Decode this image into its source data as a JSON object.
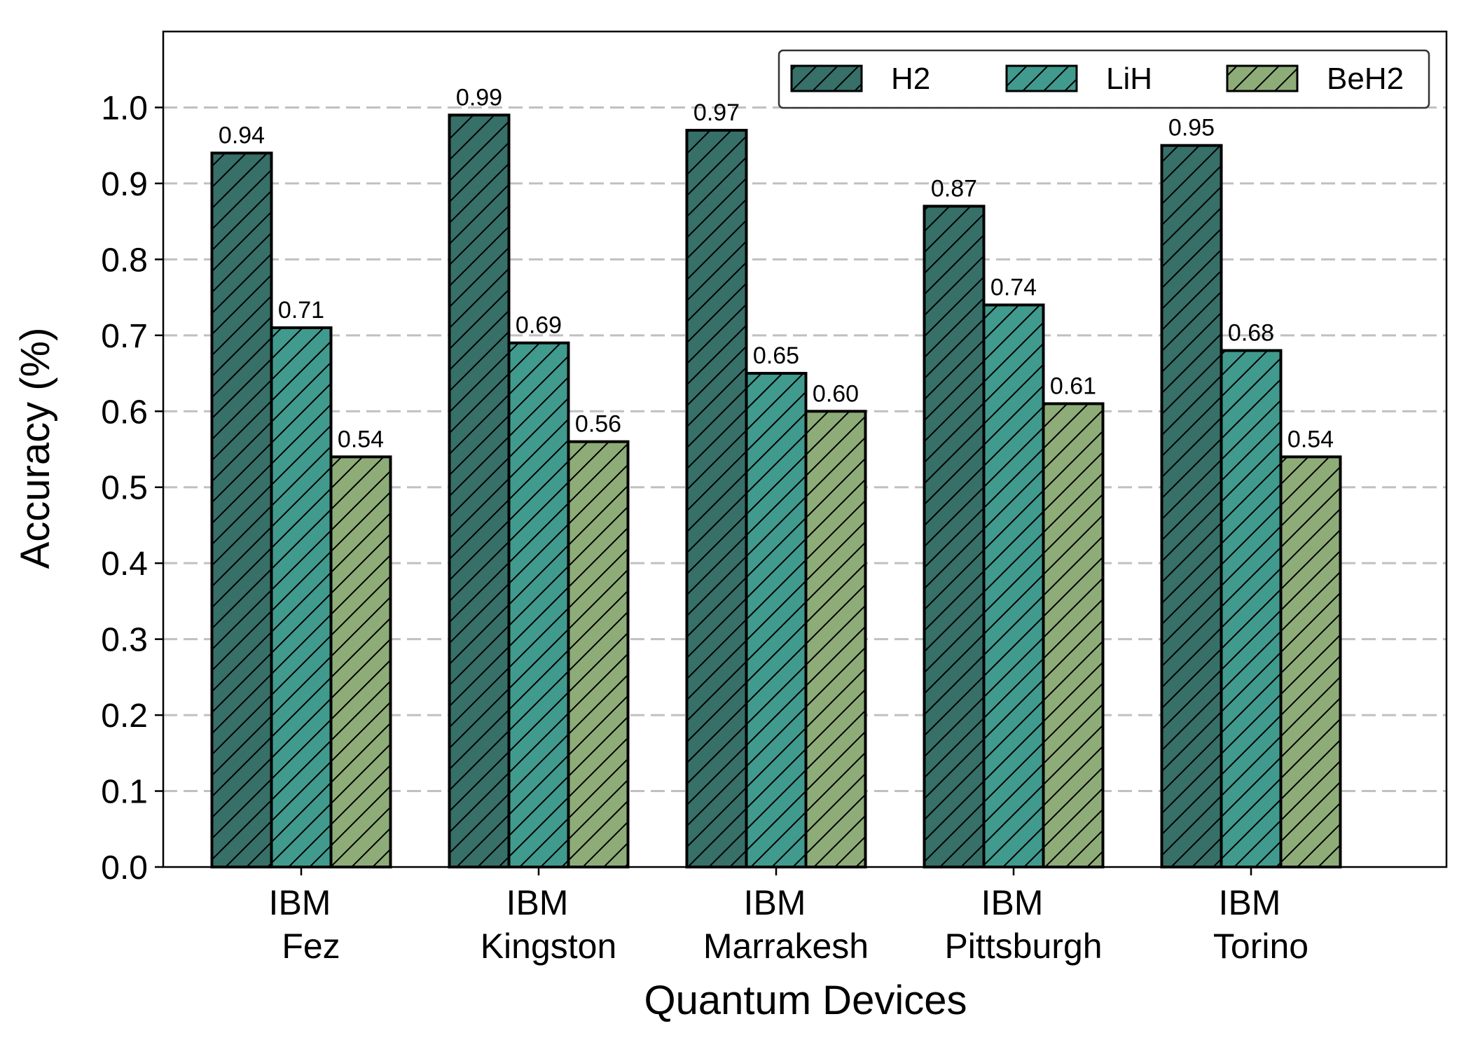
{
  "chart_data": {
    "type": "bar",
    "title": "",
    "xlabel": "Quantum Devices",
    "ylabel": "Accuracy (%)",
    "ylim": [
      0,
      1.1
    ],
    "yticks": [
      "0.0",
      "0.1",
      "0.2",
      "0.3",
      "0.4",
      "0.5",
      "0.6",
      "0.7",
      "0.8",
      "0.9",
      "1.0"
    ],
    "categories": [
      {
        "line1": "IBM",
        "line2": "Fez"
      },
      {
        "line1": "IBM",
        "line2": "Kingston"
      },
      {
        "line1": "IBM",
        "line2": "Marrakesh"
      },
      {
        "line1": "IBM",
        "line2": "Pittsburgh"
      },
      {
        "line1": "IBM",
        "line2": "Torino"
      }
    ],
    "series": [
      {
        "name": "H2",
        "color": "#367068",
        "values": [
          0.94,
          0.99,
          0.97,
          0.87,
          0.95
        ],
        "labels": [
          "0.94",
          "0.99",
          "0.97",
          "0.87",
          "0.95"
        ]
      },
      {
        "name": "LiH",
        "color": "#419A8E",
        "values": [
          0.71,
          0.69,
          0.65,
          0.74,
          0.68
        ],
        "labels": [
          "0.71",
          "0.69",
          "0.65",
          "0.74",
          "0.68"
        ]
      },
      {
        "name": "BeH2",
        "color": "#8EAC78",
        "values": [
          0.54,
          0.56,
          0.6,
          0.61,
          0.54
        ],
        "labels": [
          "0.54",
          "0.56",
          "0.60",
          "0.61",
          "0.54"
        ]
      }
    ],
    "grid": "horizontal dashed",
    "legend": "top-right",
    "hatch": "diagonal"
  }
}
